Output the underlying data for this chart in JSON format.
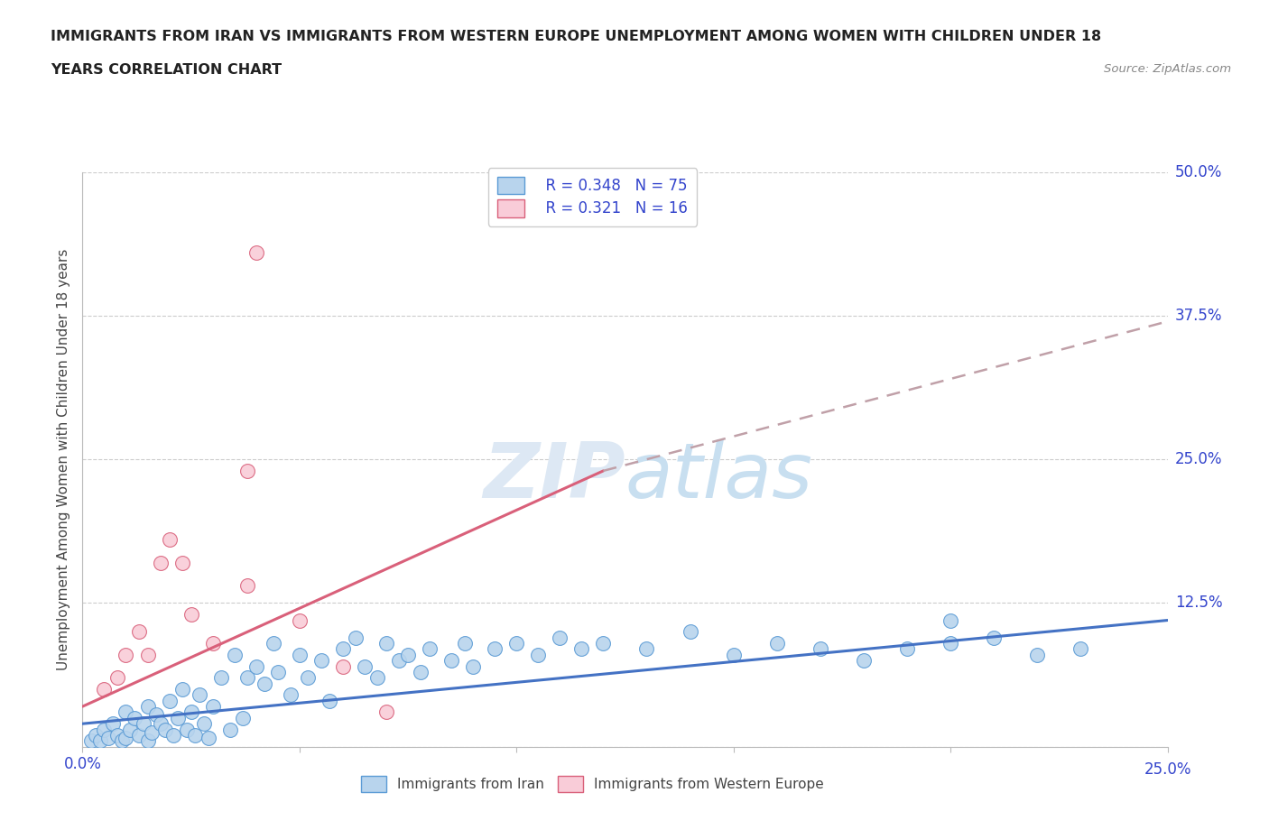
{
  "title_line1": "IMMIGRANTS FROM IRAN VS IMMIGRANTS FROM WESTERN EUROPE UNEMPLOYMENT AMONG WOMEN WITH CHILDREN UNDER 18",
  "title_line2": "YEARS CORRELATION CHART",
  "source_text": "Source: ZipAtlas.com",
  "ylabel": "Unemployment Among Women with Children Under 18 years",
  "xlim": [
    0.0,
    0.25
  ],
  "ylim": [
    0.0,
    0.5
  ],
  "grid_color": "#cccccc",
  "background_color": "#ffffff",
  "legend_R1": "R = 0.348",
  "legend_N1": "N = 75",
  "legend_R2": "R = 0.321",
  "legend_N2": "N = 16",
  "iran_fill_color": "#b8d4ed",
  "iran_edge_color": "#5b9bd5",
  "west_fill_color": "#f9ccd8",
  "west_edge_color": "#d9607a",
  "iran_trend_color": "#4472c4",
  "west_trend_solid_color": "#d9607a",
  "west_trend_dash_color": "#c0a0a8",
  "iran_scatter_x": [
    0.002,
    0.003,
    0.004,
    0.005,
    0.006,
    0.007,
    0.008,
    0.009,
    0.01,
    0.01,
    0.011,
    0.012,
    0.013,
    0.014,
    0.015,
    0.015,
    0.016,
    0.017,
    0.018,
    0.019,
    0.02,
    0.021,
    0.022,
    0.023,
    0.024,
    0.025,
    0.026,
    0.027,
    0.028,
    0.029,
    0.03,
    0.032,
    0.034,
    0.035,
    0.037,
    0.038,
    0.04,
    0.042,
    0.044,
    0.045,
    0.048,
    0.05,
    0.052,
    0.055,
    0.057,
    0.06,
    0.063,
    0.065,
    0.068,
    0.07,
    0.073,
    0.075,
    0.078,
    0.08,
    0.085,
    0.088,
    0.09,
    0.095,
    0.1,
    0.105,
    0.11,
    0.115,
    0.12,
    0.13,
    0.14,
    0.15,
    0.16,
    0.17,
    0.18,
    0.19,
    0.2,
    0.21,
    0.22,
    0.23,
    0.2
  ],
  "iran_scatter_y": [
    0.005,
    0.01,
    0.005,
    0.015,
    0.008,
    0.02,
    0.01,
    0.005,
    0.03,
    0.008,
    0.015,
    0.025,
    0.01,
    0.02,
    0.035,
    0.005,
    0.012,
    0.028,
    0.02,
    0.015,
    0.04,
    0.01,
    0.025,
    0.05,
    0.015,
    0.03,
    0.01,
    0.045,
    0.02,
    0.008,
    0.035,
    0.06,
    0.015,
    0.08,
    0.025,
    0.06,
    0.07,
    0.055,
    0.09,
    0.065,
    0.045,
    0.08,
    0.06,
    0.075,
    0.04,
    0.085,
    0.095,
    0.07,
    0.06,
    0.09,
    0.075,
    0.08,
    0.065,
    0.085,
    0.075,
    0.09,
    0.07,
    0.085,
    0.09,
    0.08,
    0.095,
    0.085,
    0.09,
    0.085,
    0.1,
    0.08,
    0.09,
    0.085,
    0.075,
    0.085,
    0.09,
    0.095,
    0.08,
    0.085,
    0.11
  ],
  "west_scatter_x": [
    0.005,
    0.008,
    0.01,
    0.013,
    0.015,
    0.018,
    0.02,
    0.023,
    0.025,
    0.03,
    0.038,
    0.04,
    0.05,
    0.06,
    0.07,
    0.038
  ],
  "west_scatter_y": [
    0.05,
    0.06,
    0.08,
    0.1,
    0.08,
    0.16,
    0.18,
    0.16,
    0.115,
    0.09,
    0.14,
    0.43,
    0.11,
    0.07,
    0.03,
    0.24
  ],
  "iran_trend_x0": 0.0,
  "iran_trend_y0": 0.02,
  "iran_trend_x1": 0.25,
  "iran_trend_y1": 0.11,
  "west_trend_solid_x0": 0.0,
  "west_trend_solid_y0": 0.035,
  "west_trend_solid_x1": 0.12,
  "west_trend_solid_y1": 0.24,
  "west_trend_dash_x0": 0.12,
  "west_trend_dash_y0": 0.24,
  "west_trend_dash_x1": 0.25,
  "west_trend_dash_y1": 0.37
}
